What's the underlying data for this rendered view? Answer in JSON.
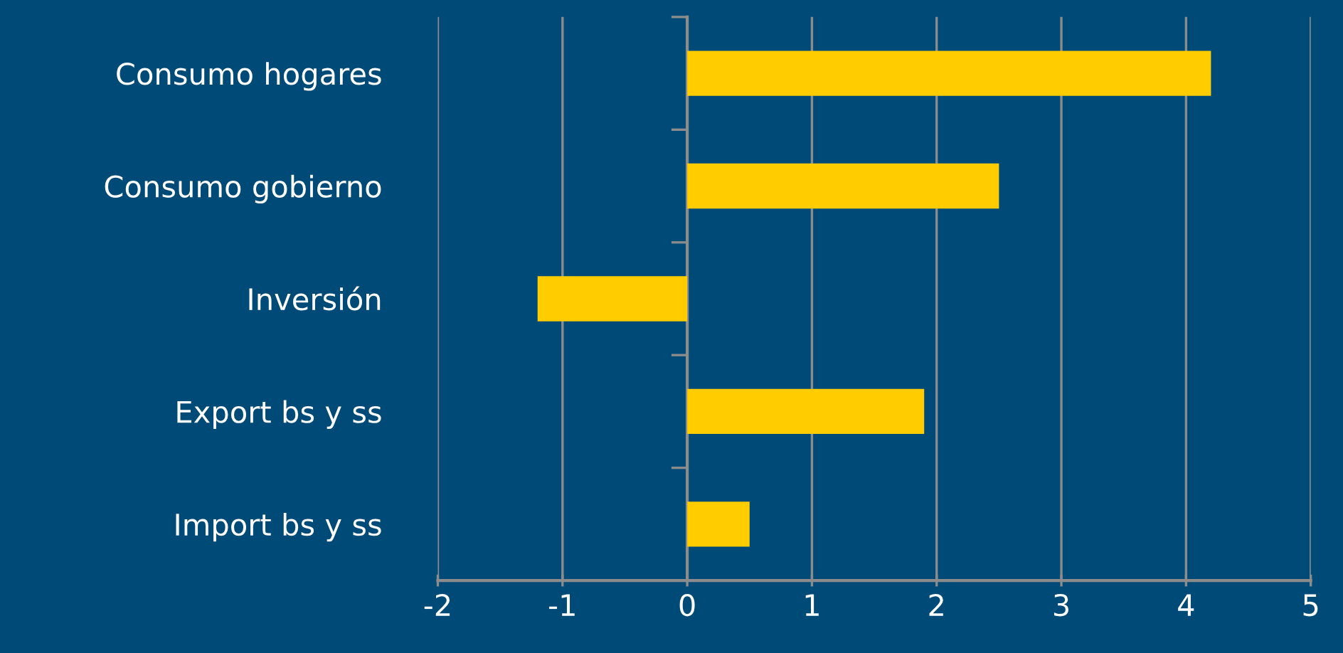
{
  "chart_data": {
    "type": "bar",
    "orientation": "horizontal",
    "categories": [
      "Consumo hogares",
      "Consumo gobierno",
      "Inversión",
      "Export bs y ss",
      "Import bs y ss"
    ],
    "values": [
      4.2,
      2.5,
      -1.2,
      1.9,
      0.5
    ],
    "color": "#ffcc00",
    "xlim": [
      -2,
      5
    ],
    "xticks": [
      -2,
      -1,
      0,
      1,
      2,
      3,
      4,
      5
    ],
    "grid": "x"
  }
}
